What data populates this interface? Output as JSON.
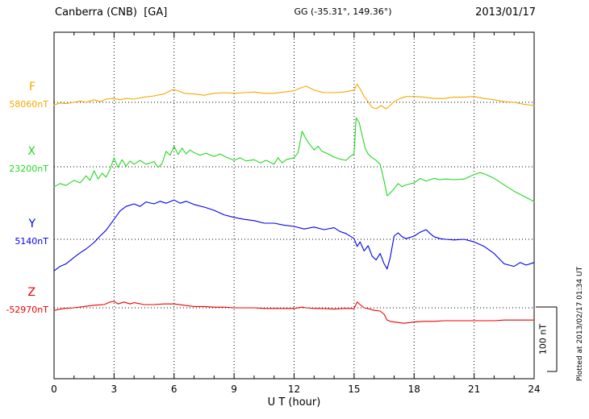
{
  "header": {
    "station": "Canberra (CNB)  [GA]",
    "coords": "GG (-35.31°, 149.36°)",
    "date": "2013/01/17"
  },
  "plot": {
    "xlabel": "U T (hour)",
    "scale_bar_label": "100 nT",
    "plotted_at": "Plotted at 2013/02/17 01:34 UT"
  },
  "chart_data": {
    "type": "line",
    "title": "Canberra (CNB) [GA] magnetogram 2013/01/17",
    "xlabel": "U T (hour)",
    "x_range": [
      0,
      24
    ],
    "x_ticks": [
      0,
      3,
      6,
      9,
      12,
      15,
      18,
      21,
      24
    ],
    "x_minor_tick_step_hours": 1,
    "scale_bar_nT": 100,
    "grid": "dotted vertical lines every 3 h; dotted horizontal line at each trace baseline",
    "legend_position": "left margin (trace letter + baseline value)",
    "series": [
      {
        "name": "F",
        "baseline_label": "58060nT",
        "baseline_nT": 58060,
        "color": "#F5A800",
        "units": "nT offset from baseline",
        "points": [
          [
            0,
            -4
          ],
          [
            0.3,
            -1
          ],
          [
            0.6,
            -2
          ],
          [
            1,
            0
          ],
          [
            1.3,
            2
          ],
          [
            1.6,
            0
          ],
          [
            2,
            4
          ],
          [
            2.3,
            1
          ],
          [
            2.6,
            5
          ],
          [
            3,
            6
          ],
          [
            3.3,
            4
          ],
          [
            3.6,
            6
          ],
          [
            4,
            5
          ],
          [
            4.5,
            8
          ],
          [
            5,
            10
          ],
          [
            5.5,
            13
          ],
          [
            5.8,
            18
          ],
          [
            6,
            20
          ],
          [
            6.2,
            18
          ],
          [
            6.5,
            14
          ],
          [
            7,
            13
          ],
          [
            7.5,
            11
          ],
          [
            8,
            14
          ],
          [
            8.5,
            15
          ],
          [
            9,
            14
          ],
          [
            9.5,
            15
          ],
          [
            10,
            16
          ],
          [
            10.5,
            14
          ],
          [
            11,
            14
          ],
          [
            11.5,
            16
          ],
          [
            12,
            18
          ],
          [
            12.3,
            22
          ],
          [
            12.6,
            25
          ],
          [
            13,
            19
          ],
          [
            13.5,
            15
          ],
          [
            14,
            15
          ],
          [
            14.5,
            16
          ],
          [
            15,
            19
          ],
          [
            15.15,
            28
          ],
          [
            15.3,
            21
          ],
          [
            15.5,
            9
          ],
          [
            15.7,
            1
          ],
          [
            15.9,
            -8
          ],
          [
            16.1,
            -10
          ],
          [
            16.35,
            -5
          ],
          [
            16.6,
            -10
          ],
          [
            16.8,
            -5
          ],
          [
            17,
            1
          ],
          [
            17.3,
            6
          ],
          [
            17.6,
            9
          ],
          [
            18,
            9
          ],
          [
            18.5,
            8
          ],
          [
            19,
            6
          ],
          [
            19.5,
            6
          ],
          [
            20,
            8
          ],
          [
            20.5,
            8
          ],
          [
            21,
            9
          ],
          [
            21.5,
            6
          ],
          [
            22,
            4
          ],
          [
            22.5,
            1
          ],
          [
            23,
            0
          ],
          [
            23.5,
            -3
          ],
          [
            24,
            -5
          ]
        ]
      },
      {
        "name": "X",
        "baseline_label": "23200nT",
        "baseline_nT": 23200,
        "color": "#22D822",
        "units": "nT offset from baseline",
        "points": [
          [
            0,
            -31
          ],
          [
            0.3,
            -26
          ],
          [
            0.6,
            -29
          ],
          [
            1,
            -21
          ],
          [
            1.3,
            -25
          ],
          [
            1.6,
            -14
          ],
          [
            1.8,
            -21
          ],
          [
            2,
            -6
          ],
          [
            2.2,
            -19
          ],
          [
            2.4,
            -10
          ],
          [
            2.6,
            -16
          ],
          [
            2.8,
            -4
          ],
          [
            3,
            14
          ],
          [
            3.2,
            -1
          ],
          [
            3.4,
            11
          ],
          [
            3.6,
            1
          ],
          [
            3.8,
            9
          ],
          [
            4,
            4
          ],
          [
            4.3,
            10
          ],
          [
            4.6,
            4
          ],
          [
            5,
            8
          ],
          [
            5.2,
            -1
          ],
          [
            5.4,
            5
          ],
          [
            5.6,
            24
          ],
          [
            5.8,
            18
          ],
          [
            6,
            32
          ],
          [
            6.2,
            19
          ],
          [
            6.4,
            29
          ],
          [
            6.6,
            20
          ],
          [
            6.8,
            26
          ],
          [
            7,
            22
          ],
          [
            7.3,
            18
          ],
          [
            7.6,
            21
          ],
          [
            8,
            16
          ],
          [
            8.3,
            20
          ],
          [
            8.6,
            15
          ],
          [
            9,
            10
          ],
          [
            9.3,
            14
          ],
          [
            9.6,
            9
          ],
          [
            10,
            11
          ],
          [
            10.3,
            6
          ],
          [
            10.6,
            10
          ],
          [
            11,
            4
          ],
          [
            11.2,
            14
          ],
          [
            11.4,
            6
          ],
          [
            11.6,
            11
          ],
          [
            12,
            14
          ],
          [
            12.2,
            22
          ],
          [
            12.4,
            55
          ],
          [
            12.55,
            46
          ],
          [
            12.7,
            38
          ],
          [
            13,
            26
          ],
          [
            13.2,
            32
          ],
          [
            13.4,
            24
          ],
          [
            13.7,
            20
          ],
          [
            14,
            15
          ],
          [
            14.3,
            12
          ],
          [
            14.6,
            10
          ],
          [
            14.8,
            16
          ],
          [
            15,
            20
          ],
          [
            15.1,
            76
          ],
          [
            15.25,
            69
          ],
          [
            15.4,
            49
          ],
          [
            15.55,
            29
          ],
          [
            15.7,
            20
          ],
          [
            15.9,
            14
          ],
          [
            16.1,
            10
          ],
          [
            16.3,
            4
          ],
          [
            16.5,
            -22
          ],
          [
            16.65,
            -45
          ],
          [
            16.8,
            -41
          ],
          [
            17,
            -34
          ],
          [
            17.2,
            -26
          ],
          [
            17.4,
            -31
          ],
          [
            17.6,
            -28
          ],
          [
            18,
            -25
          ],
          [
            18.3,
            -18
          ],
          [
            18.6,
            -22
          ],
          [
            19,
            -18
          ],
          [
            19.3,
            -20
          ],
          [
            19.6,
            -19
          ],
          [
            20,
            -20
          ],
          [
            20.5,
            -19
          ],
          [
            21,
            -12
          ],
          [
            21.3,
            -9
          ],
          [
            21.6,
            -12
          ],
          [
            22,
            -18
          ],
          [
            22.5,
            -28
          ],
          [
            23,
            -38
          ],
          [
            23.5,
            -46
          ],
          [
            24,
            -54
          ]
        ]
      },
      {
        "name": "Y",
        "baseline_label": "5140nT",
        "baseline_nT": 5140,
        "color": "#0000EE",
        "units": "nT offset from baseline",
        "points": [
          [
            0,
            -49
          ],
          [
            0.3,
            -42
          ],
          [
            0.6,
            -38
          ],
          [
            1,
            -28
          ],
          [
            1.3,
            -21
          ],
          [
            1.6,
            -15
          ],
          [
            2,
            -5
          ],
          [
            2.3,
            5
          ],
          [
            2.6,
            14
          ],
          [
            3,
            31
          ],
          [
            3.3,
            44
          ],
          [
            3.6,
            51
          ],
          [
            4,
            55
          ],
          [
            4.3,
            51
          ],
          [
            4.6,
            58
          ],
          [
            5,
            55
          ],
          [
            5.3,
            59
          ],
          [
            5.6,
            56
          ],
          [
            6,
            61
          ],
          [
            6.3,
            56
          ],
          [
            6.6,
            59
          ],
          [
            7,
            54
          ],
          [
            7.5,
            50
          ],
          [
            8,
            45
          ],
          [
            8.5,
            38
          ],
          [
            9,
            34
          ],
          [
            9.5,
            31
          ],
          [
            10,
            29
          ],
          [
            10.5,
            25
          ],
          [
            11,
            25
          ],
          [
            11.5,
            22
          ],
          [
            12,
            20
          ],
          [
            12.5,
            16
          ],
          [
            13,
            19
          ],
          [
            13.5,
            15
          ],
          [
            14,
            18
          ],
          [
            14.3,
            12
          ],
          [
            14.6,
            9
          ],
          [
            15,
            1
          ],
          [
            15.15,
            -11
          ],
          [
            15.3,
            -4
          ],
          [
            15.5,
            -18
          ],
          [
            15.7,
            -10
          ],
          [
            15.9,
            -26
          ],
          [
            16.1,
            -32
          ],
          [
            16.3,
            -22
          ],
          [
            16.5,
            -38
          ],
          [
            16.65,
            -46
          ],
          [
            16.8,
            -29
          ],
          [
            17,
            5
          ],
          [
            17.2,
            10
          ],
          [
            17.4,
            4
          ],
          [
            17.6,
            1
          ],
          [
            18,
            5
          ],
          [
            18.3,
            11
          ],
          [
            18.6,
            15
          ],
          [
            18.8,
            9
          ],
          [
            19,
            4
          ],
          [
            19.3,
            1
          ],
          [
            19.6,
            0
          ],
          [
            20,
            -1
          ],
          [
            20.5,
            0
          ],
          [
            21,
            -4
          ],
          [
            21.5,
            -11
          ],
          [
            22,
            -22
          ],
          [
            22.5,
            -38
          ],
          [
            23,
            -42
          ],
          [
            23.3,
            -36
          ],
          [
            23.6,
            -40
          ],
          [
            24,
            -36
          ]
        ]
      },
      {
        "name": "Z",
        "baseline_label": "-52970nT",
        "baseline_nT": -52970,
        "color": "#EE0000",
        "units": "nT offset from baseline",
        "points": [
          [
            0,
            -4
          ],
          [
            0.5,
            -1
          ],
          [
            1,
            0
          ],
          [
            1.5,
            2
          ],
          [
            2,
            4
          ],
          [
            2.5,
            5
          ],
          [
            2.8,
            9
          ],
          [
            3,
            10
          ],
          [
            3.2,
            6
          ],
          [
            3.5,
            9
          ],
          [
            3.8,
            6
          ],
          [
            4,
            8
          ],
          [
            4.5,
            5
          ],
          [
            5,
            5
          ],
          [
            5.5,
            6
          ],
          [
            6,
            6
          ],
          [
            6.5,
            4
          ],
          [
            7,
            2
          ],
          [
            7.5,
            2
          ],
          [
            8,
            1
          ],
          [
            8.5,
            1
          ],
          [
            9,
            0
          ],
          [
            9.5,
            0
          ],
          [
            10,
            0
          ],
          [
            10.5,
            -1
          ],
          [
            11,
            -1
          ],
          [
            11.5,
            -1
          ],
          [
            12,
            -1
          ],
          [
            12.4,
            1
          ],
          [
            12.6,
            0
          ],
          [
            13,
            -1
          ],
          [
            13.5,
            -1
          ],
          [
            14,
            -2
          ],
          [
            14.5,
            -1
          ],
          [
            15,
            -1
          ],
          [
            15.15,
            9
          ],
          [
            15.3,
            5
          ],
          [
            15.5,
            0
          ],
          [
            15.8,
            -2
          ],
          [
            16,
            -4
          ],
          [
            16.3,
            -5
          ],
          [
            16.5,
            -10
          ],
          [
            16.65,
            -19
          ],
          [
            16.8,
            -21
          ],
          [
            17,
            -22
          ],
          [
            17.5,
            -24
          ],
          [
            18,
            -22
          ],
          [
            18.5,
            -21
          ],
          [
            19,
            -21
          ],
          [
            19.5,
            -20
          ],
          [
            20,
            -20
          ],
          [
            20.5,
            -20
          ],
          [
            21,
            -20
          ],
          [
            21.5,
            -20
          ],
          [
            22,
            -20
          ],
          [
            22.5,
            -19
          ],
          [
            23,
            -19
          ],
          [
            23.5,
            -19
          ],
          [
            24,
            -19
          ]
        ]
      }
    ]
  }
}
